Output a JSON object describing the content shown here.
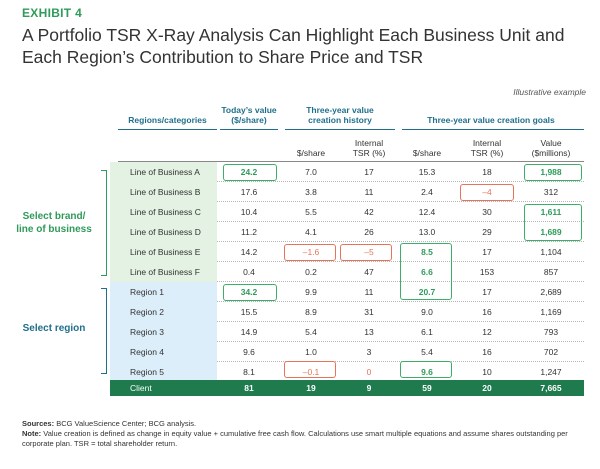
{
  "exhibit": "EXHIBIT 4",
  "title": "A Portfolio TSR X-Ray Analysis Can Highlight Each Business Unit and Each Region’s Contribution to Share Price and TSR",
  "note_illustrative": "Illustrative example",
  "headers": {
    "regions": "Regions/categories",
    "today_value": [
      "Today’s value",
      "($/share)"
    ],
    "history": [
      "Three-year value",
      "creation history"
    ],
    "goals": "Three-year value creation goals"
  },
  "subheaders": {
    "hist_share": "$/share",
    "hist_tsr": [
      "Internal",
      "TSR (%)"
    ],
    "goal_share": "$/share",
    "goal_tsr": [
      "Internal",
      "TSR (%)"
    ],
    "goal_value": [
      "Value",
      "($millions)"
    ]
  },
  "rows": [
    {
      "label": "Line of Business A",
      "type": "bus",
      "today": "24.2",
      "hist_share": "7.0",
      "hist_tsr": "17",
      "goal_share": "15.3",
      "goal_tsr": "18",
      "goal_value": "1,988"
    },
    {
      "label": "Line of Business B",
      "type": "bus",
      "today": "17.6",
      "hist_share": "3.8",
      "hist_tsr": "11",
      "goal_share": "2.4",
      "goal_tsr": "–4",
      "goal_value": "312"
    },
    {
      "label": "Line of Business C",
      "type": "bus",
      "today": "10.4",
      "hist_share": "5.5",
      "hist_tsr": "42",
      "goal_share": "12.4",
      "goal_tsr": "30",
      "goal_value": "1,611"
    },
    {
      "label": "Line of Business D",
      "type": "bus",
      "today": "11.2",
      "hist_share": "4.1",
      "hist_tsr": "26",
      "goal_share": "13.0",
      "goal_tsr": "29",
      "goal_value": "1,689"
    },
    {
      "label": "Line of Business E",
      "type": "bus",
      "today": "14.2",
      "hist_share": "–1.6",
      "hist_tsr": "–5",
      "goal_share": "8.5",
      "goal_tsr": "17",
      "goal_value": "1,104"
    },
    {
      "label": "Line of Business F",
      "type": "bus",
      "today": "0.4",
      "hist_share": "0.2",
      "hist_tsr": "47",
      "goal_share": "6.6",
      "goal_tsr": "153",
      "goal_value": "857"
    },
    {
      "label": "Region 1",
      "type": "reg",
      "today": "34.2",
      "hist_share": "9.9",
      "hist_tsr": "11",
      "goal_share": "20.7",
      "goal_tsr": "17",
      "goal_value": "2,689"
    },
    {
      "label": "Region 2",
      "type": "reg",
      "today": "15.5",
      "hist_share": "8.9",
      "hist_tsr": "31",
      "goal_share": "9.0",
      "goal_tsr": "16",
      "goal_value": "1,169"
    },
    {
      "label": "Region 3",
      "type": "reg",
      "today": "14.9",
      "hist_share": "5.4",
      "hist_tsr": "13",
      "goal_share": "6.1",
      "goal_tsr": "12",
      "goal_value": "793"
    },
    {
      "label": "Region 4",
      "type": "reg",
      "today": "9.6",
      "hist_share": "1.0",
      "hist_tsr": "3",
      "goal_share": "5.4",
      "goal_tsr": "16",
      "goal_value": "702"
    },
    {
      "label": "Region 5",
      "type": "reg",
      "today": "8.1",
      "hist_share": "–0.1",
      "hist_tsr": "0",
      "goal_share": "9.6",
      "goal_tsr": "10",
      "goal_value": "1,247"
    }
  ],
  "client": {
    "label": "Client",
    "today": "81",
    "hist_share": "19",
    "hist_tsr": "9",
    "goal_share": "59",
    "goal_tsr": "20",
    "goal_value": "7,665"
  },
  "select_brand": [
    "Select brand/",
    "line of business"
  ],
  "select_region": "Select region",
  "footnotes": {
    "sources_label": "Sources:",
    "sources": " BCG ValueScience Center; BCG analysis.",
    "note_label": "Note:",
    "note": " Value creation is defined as change in equity value + cumulative free cash flow. Calculations use smart multiple equations and assume shares outstanding per corporate plan. TSR = total shareholder return."
  },
  "colors": {
    "green": "#2f9a5a",
    "blue": "#1f6f8b",
    "orange": "#e8735a",
    "client_bar": "#1f7a4d"
  }
}
